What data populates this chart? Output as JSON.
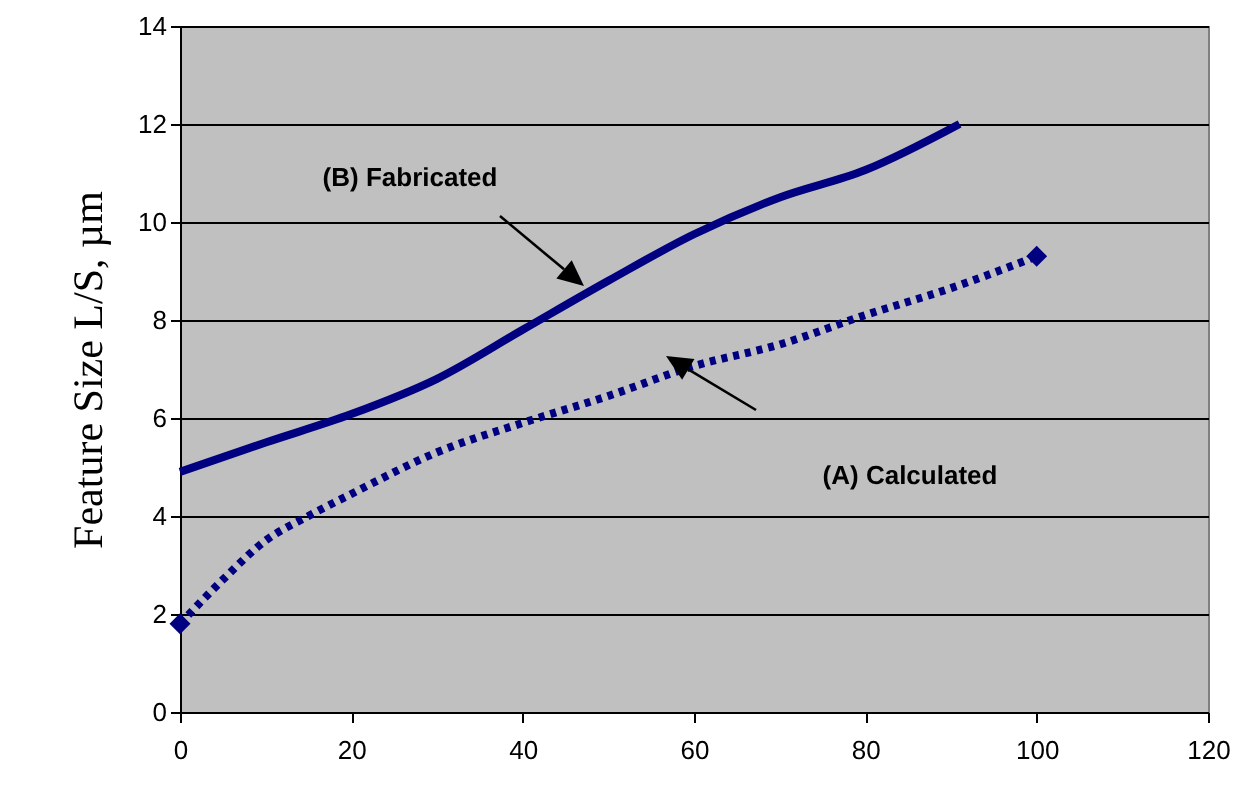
{
  "chart_data": {
    "type": "line",
    "ylabel": "Feature Size L/S, µm",
    "xlim": [
      0,
      120
    ],
    "xticks": [
      0,
      20,
      40,
      60,
      80,
      100,
      120
    ],
    "ylim": [
      0,
      14
    ],
    "yticks": [
      0,
      2,
      4,
      6,
      8,
      10,
      12,
      14
    ],
    "grid": "y",
    "series": [
      {
        "color": "#000080",
        "line_style": "solid",
        "x": [
          0,
          10,
          20,
          30,
          40,
          50,
          60,
          70,
          80,
          91
        ],
        "values": [
          4.9,
          5.5,
          6.08,
          6.8,
          7.8,
          8.8,
          9.75,
          10.5,
          11.06,
          12.0
        ]
      },
      {
        "color": "#000080",
        "line_style": "dotted",
        "x": [
          0,
          5,
          10,
          15,
          20,
          30,
          40,
          50,
          60,
          70,
          80,
          90,
          100
        ],
        "values": [
          1.8,
          2.7,
          3.5,
          4.0,
          4.45,
          5.3,
          5.9,
          6.45,
          7.06,
          7.5,
          8.1,
          8.65,
          9.3
        ]
      },
      {
        "type": "scatter",
        "color": "#000080",
        "marker": "diamond",
        "x": [
          0,
          100
        ],
        "values": [
          1.8,
          9.3
        ]
      }
    ],
    "annotations": [
      "(B) Fabricated",
      "(A) Calculated"
    ]
  }
}
